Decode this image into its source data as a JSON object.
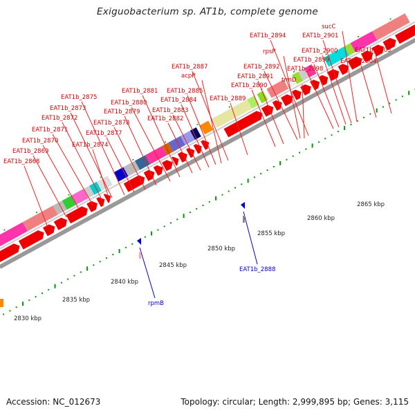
{
  "title": "Exiguobacterium sp. AT1b, complete genome",
  "footer": {
    "accession": "Accession: NC_012673",
    "topology": "Topology: circular; Length: 2,999,895 bp; Genes: 3,115"
  },
  "colors": {
    "gene_arrow": "#ee0000",
    "label_red": "#cc0000",
    "label_blue": "#0000cc",
    "tick_green": "#009900",
    "backbone": "#999999"
  },
  "ruler_labels": [
    "2830 kbp",
    "2835 kbp",
    "2840 kbp",
    "2845 kbp",
    "2850 kbp",
    "2855 kbp",
    "2860 kbp",
    "2865 kbp"
  ],
  "gene_labels_red": [
    "EAT1b_2868",
    "EAT1b_2869",
    "EAT1b_2870",
    "EAT1b_2871",
    "EAT1b_2872",
    "EAT1b_2873",
    "EAT1b_2874",
    "EAT1b_2875",
    "EAT1b_2877",
    "EAT1b_2878",
    "EAT1b_2879",
    "EAT1b_2880",
    "EAT1b_2881",
    "EAT1b_2882",
    "EAT1b_2883",
    "EAT1b_2884",
    "EAT1b_2885",
    "acpP",
    "EAT1b_2887",
    "EAT1b_2889",
    "EAT1b_2890",
    "EAT1b_2891",
    "EAT1b_2892",
    "trmD",
    "rpsP",
    "EAT1b_2894",
    "EAT1b_2898",
    "EAT1b_2899",
    "EAT1b_2900",
    "EAT1b_2901",
    "sucC",
    "EAT1b_2904",
    "EAT1b_2905"
  ],
  "gene_labels_blue": [
    "rpmB",
    "EAT1b_2888"
  ]
}
